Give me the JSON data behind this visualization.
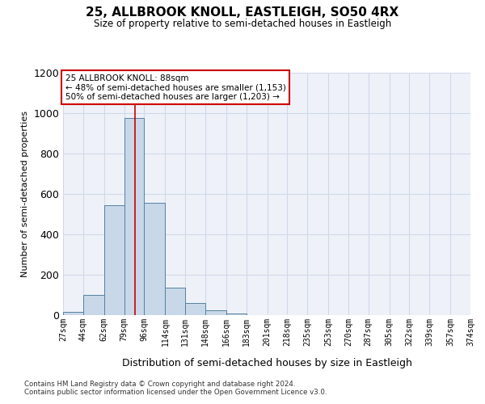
{
  "title": "25, ALLBROOK KNOLL, EASTLEIGH, SO50 4RX",
  "subtitle": "Size of property relative to semi-detached houses in Eastleigh",
  "xlabel": "Distribution of semi-detached houses by size in Eastleigh",
  "ylabel": "Number of semi-detached properties",
  "bar_color": "#c8d8e8",
  "bar_edge_color": "#5580a0",
  "annotation_title": "25 ALLBROOK KNOLL: 88sqm",
  "annotation_line1": "← 48% of semi-detached houses are smaller (1,153)",
  "annotation_line2": "50% of semi-detached houses are larger (1,203) →",
  "vline_x": 88,
  "vline_color": "#cc0000",
  "annotation_box_color": "#ffffff",
  "annotation_box_edge": "#cc0000",
  "footer1": "Contains HM Land Registry data © Crown copyright and database right 2024.",
  "footer2": "Contains public sector information licensed under the Open Government Licence v3.0.",
  "bin_edges": [
    27,
    44,
    62,
    79,
    96,
    114,
    131,
    148,
    166,
    183,
    201,
    218,
    235,
    253,
    270,
    287,
    305,
    322,
    339,
    357,
    374
  ],
  "bar_heights": [
    15,
    100,
    545,
    975,
    555,
    135,
    60,
    25,
    10,
    0,
    0,
    0,
    0,
    0,
    0,
    0,
    0,
    0,
    0,
    0
  ],
  "ylim": [
    0,
    1200
  ],
  "yticks": [
    0,
    200,
    400,
    600,
    800,
    1000,
    1200
  ],
  "grid_color": "#d0d8e8",
  "background_color": "#eef2f8"
}
